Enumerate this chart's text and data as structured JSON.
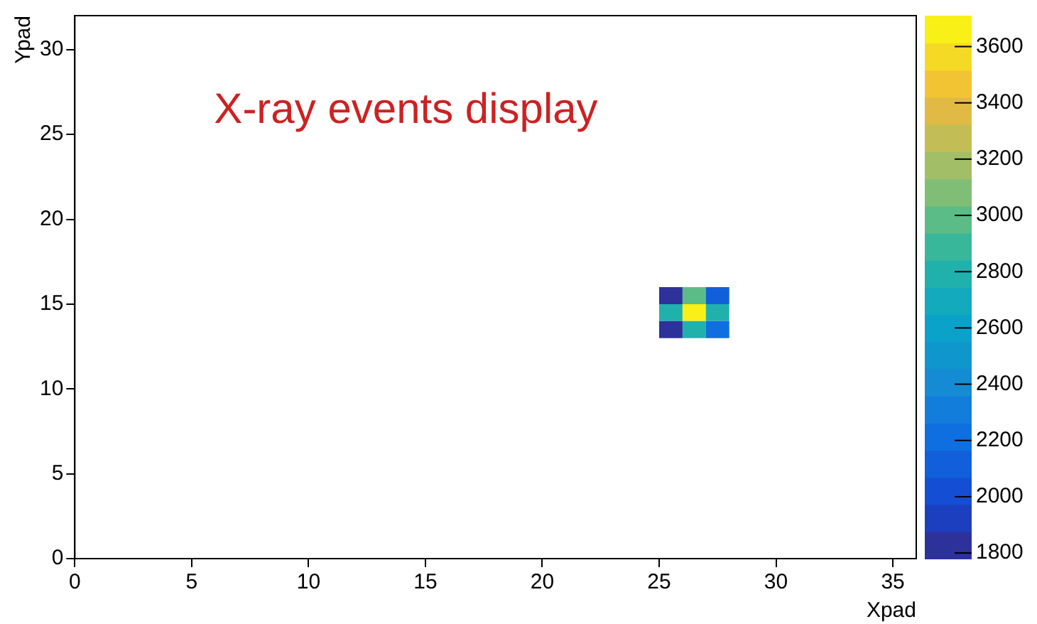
{
  "chart_data": {
    "type": "scatter",
    "title": "X-ray events display",
    "xlabel": "Xpad",
    "ylabel": "Ypad",
    "marker": "square",
    "x": [
      25.5,
      26.5,
      27.5,
      25.5,
      26.5,
      27.5,
      25.5,
      26.5,
      27.5
    ],
    "values": [
      15.5,
      15.5,
      15.5,
      14.5,
      14.5,
      14.5,
      13.5,
      13.5,
      13.5
    ],
    "cvalues": [
      1800,
      2950,
      2100,
      2800,
      3700,
      2800,
      1850,
      2750,
      2200
    ],
    "xlim": [
      0,
      36
    ],
    "xticks": [
      0,
      5,
      10,
      15,
      20,
      25,
      30,
      35
    ],
    "ylim": [
      0,
      32
    ],
    "yticks": [
      0,
      5,
      10,
      15,
      20,
      25,
      30
    ],
    "clim": [
      1780,
      3710
    ],
    "cticks": [
      1800,
      2000,
      2200,
      2400,
      2600,
      2800,
      3000,
      3200,
      3400,
      3600
    ]
  }
}
